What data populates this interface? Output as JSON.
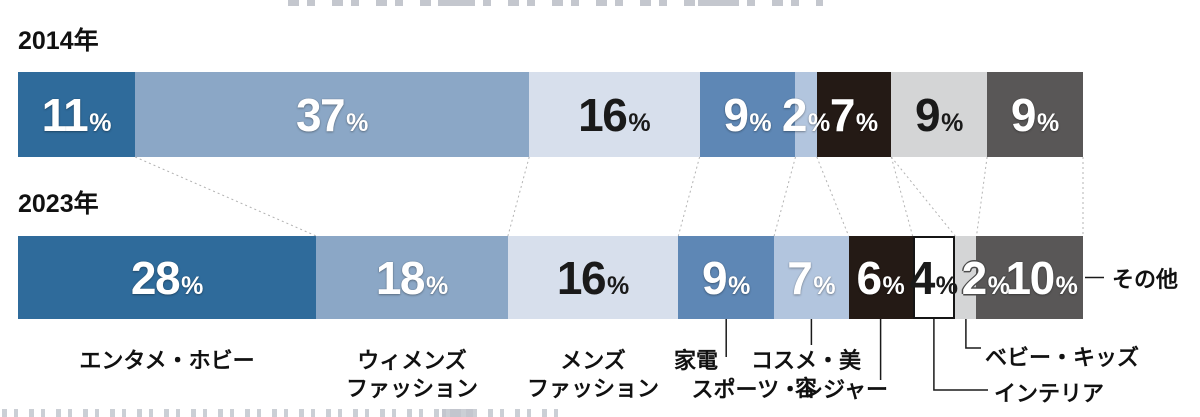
{
  "chart_data": {
    "type": "bar",
    "orientation": "horizontal-stacked",
    "unit": "%",
    "xlim": [
      0,
      100
    ],
    "grid": false,
    "legend": "none",
    "categories": [
      "エンタメ・ホビー",
      "ウィメンズファッション",
      "メンズファッション",
      "家電",
      "コスメ・美容",
      "スポーツ・レジャー",
      "インテリア",
      "ベビー・キッズ",
      "その他"
    ],
    "category_ids": [
      "entame",
      "womens",
      "mens",
      "kaden",
      "cosme",
      "sports",
      "interior",
      "baby",
      "other"
    ],
    "series": [
      {
        "name": "2014年",
        "values": [
          11,
          37,
          16,
          9,
          2,
          7,
          0,
          9,
          9
        ]
      },
      {
        "name": "2023年",
        "values": [
          28,
          18,
          16,
          9,
          7,
          6,
          4,
          2,
          10
        ]
      }
    ],
    "colors": [
      "#2f6b9b",
      "#8ba7c6",
      "#d7dfec",
      "#5e87b5",
      "#b2c5de",
      "#241a15",
      "#ffffff",
      "#d4d5d6",
      "#595757"
    ]
  },
  "display_labels": {
    "entame": "エンタメ・ホビー",
    "womens": "ウィメンズ\nファッション",
    "mens": "メンズ\nファッション",
    "kaden": "家電",
    "cosme": "コスメ・美容",
    "sports": "スポーツ・レジャー",
    "interior": "インテリア",
    "baby": "ベビー・キッズ",
    "other": "その他"
  },
  "accent_colors": {
    "callout_line": "#1a1a1a",
    "connector_dotted": "#b3b3b3",
    "text_dark": "#111111",
    "text_light": "#ffffff"
  }
}
